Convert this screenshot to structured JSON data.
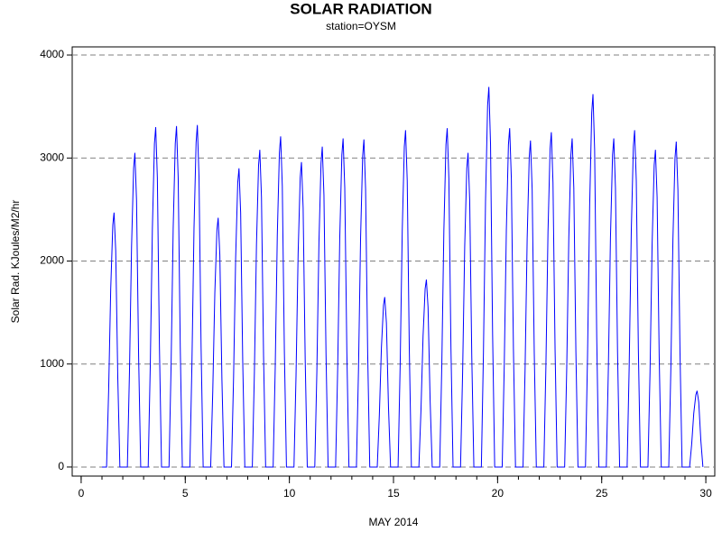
{
  "chart_data": {
    "type": "line",
    "title": "SOLAR RADIATION",
    "subtitle": "station=OYSM",
    "y_label": "Solar Rad. KJoules/M2/hr",
    "x_label": "MAY 2014",
    "color": "#0000ff",
    "xlim": [
      -0.43,
      30.43
    ],
    "ylim": [
      -88,
      4079
    ],
    "xticks": [
      0,
      5,
      10,
      15,
      20,
      25,
      30
    ],
    "xminorticks": [
      0,
      1,
      2,
      3,
      4,
      5,
      6,
      7,
      8,
      9,
      10,
      11,
      12,
      13,
      14,
      15,
      16,
      17,
      18,
      19,
      20,
      21,
      22,
      23,
      24,
      25,
      26,
      27,
      28,
      29,
      30
    ],
    "yticks": [
      0,
      1000,
      2000,
      3000,
      4000
    ],
    "grid": true,
    "x": [
      1.0,
      1.22,
      1.32,
      1.42,
      1.52,
      1.58,
      1.66,
      1.76,
      1.86,
      2.22,
      2.32,
      2.42,
      2.52,
      2.58,
      2.66,
      2.76,
      2.86,
      3.22,
      3.32,
      3.42,
      3.52,
      3.58,
      3.66,
      3.76,
      3.86,
      4.22,
      4.32,
      4.42,
      4.52,
      4.58,
      4.66,
      4.76,
      4.86,
      5.22,
      5.32,
      5.42,
      5.52,
      5.58,
      5.66,
      5.76,
      5.86,
      6.22,
      6.32,
      6.42,
      6.52,
      6.58,
      6.66,
      6.76,
      6.86,
      7.22,
      7.32,
      7.42,
      7.52,
      7.58,
      7.66,
      7.76,
      7.86,
      8.22,
      8.32,
      8.42,
      8.52,
      8.58,
      8.66,
      8.76,
      8.86,
      9.22,
      9.32,
      9.42,
      9.52,
      9.58,
      9.66,
      9.76,
      9.86,
      10.22,
      10.32,
      10.42,
      10.52,
      10.58,
      10.66,
      10.76,
      10.86,
      11.22,
      11.32,
      11.42,
      11.52,
      11.58,
      11.66,
      11.76,
      11.86,
      12.22,
      12.32,
      12.42,
      12.52,
      12.58,
      12.66,
      12.76,
      12.86,
      13.22,
      13.32,
      13.42,
      13.52,
      13.58,
      13.66,
      13.76,
      13.86,
      14.22,
      14.32,
      14.42,
      14.52,
      14.58,
      14.66,
      14.76,
      14.86,
      15.22,
      15.32,
      15.42,
      15.52,
      15.58,
      15.66,
      15.76,
      15.86,
      16.22,
      16.32,
      16.42,
      16.52,
      16.58,
      16.66,
      16.76,
      16.86,
      17.22,
      17.32,
      17.42,
      17.52,
      17.58,
      17.66,
      17.76,
      17.86,
      18.22,
      18.32,
      18.42,
      18.52,
      18.58,
      18.66,
      18.76,
      18.86,
      19.22,
      19.32,
      19.42,
      19.52,
      19.58,
      19.66,
      19.76,
      19.86,
      20.22,
      20.32,
      20.42,
      20.52,
      20.58,
      20.66,
      20.76,
      20.86,
      21.22,
      21.32,
      21.42,
      21.52,
      21.58,
      21.66,
      21.76,
      21.86,
      22.22,
      22.32,
      22.42,
      22.52,
      22.58,
      22.66,
      22.76,
      22.86,
      23.22,
      23.32,
      23.42,
      23.52,
      23.58,
      23.66,
      23.76,
      23.86,
      24.22,
      24.32,
      24.42,
      24.52,
      24.58,
      24.66,
      24.76,
      24.86,
      25.22,
      25.32,
      25.42,
      25.52,
      25.58,
      25.66,
      25.76,
      25.86,
      26.22,
      26.32,
      26.42,
      26.52,
      26.58,
      26.66,
      26.76,
      26.86,
      27.22,
      27.32,
      27.42,
      27.52,
      27.58,
      27.66,
      27.76,
      27.86,
      28.22,
      28.32,
      28.42,
      28.52,
      28.58,
      28.66,
      28.76,
      28.86,
      29.22,
      29.32,
      29.42,
      29.52,
      29.58,
      29.66,
      29.76,
      29.86
    ],
    "values": [
      0,
      0,
      740,
      1730,
      2350,
      2470,
      2100,
      860,
      0,
      0,
      920,
      2140,
      2900,
      3050,
      2590,
      1070,
      0,
      0,
      990,
      2310,
      3140,
      3300,
      2810,
      1160,
      0,
      0,
      990,
      2320,
      3140,
      3310,
      2810,
      1160,
      0,
      0,
      1000,
      2320,
      3150,
      3320,
      2820,
      1160,
      0,
      0,
      730,
      1690,
      2300,
      2420,
      2060,
      850,
      0,
      0,
      870,
      2030,
      2760,
      2900,
      2470,
      1020,
      0,
      0,
      920,
      2160,
      2930,
      3080,
      2620,
      1080,
      0,
      0,
      960,
      2250,
      3050,
      3210,
      2730,
      1120,
      0,
      0,
      890,
      2070,
      2810,
      2960,
      2520,
      1040,
      0,
      0,
      930,
      2180,
      2950,
      3110,
      2640,
      1090,
      0,
      0,
      960,
      2230,
      3030,
      3190,
      2710,
      1120,
      0,
      0,
      950,
      2230,
      3020,
      3180,
      2700,
      1110,
      0,
      0,
      500,
      1160,
      1570,
      1650,
      1400,
      580,
      0,
      0,
      980,
      2290,
      3110,
      3270,
      2780,
      1140,
      0,
      0,
      550,
      1270,
      1730,
      1820,
      1550,
      640,
      0,
      0,
      990,
      2300,
      3130,
      3290,
      2800,
      1150,
      0,
      0,
      920,
      2140,
      2900,
      3050,
      2590,
      1070,
      0,
      0,
      1110,
      2580,
      3510,
      3690,
      3140,
      1290,
      0,
      0,
      990,
      2300,
      3130,
      3290,
      2800,
      1150,
      0,
      0,
      950,
      2220,
      3010,
      3170,
      2690,
      1110,
      0,
      0,
      980,
      2280,
      3090,
      3250,
      2760,
      1140,
      0,
      0,
      960,
      2230,
      3030,
      3190,
      2710,
      1120,
      0,
      0,
      1090,
      2530,
      3440,
      3620,
      3080,
      1270,
      0,
      0,
      960,
      2230,
      3030,
      3190,
      2710,
      1120,
      0,
      0,
      980,
      2290,
      3110,
      3270,
      2780,
      1140,
      0,
      0,
      920,
      2160,
      2930,
      3080,
      2620,
      1080,
      0,
      0,
      950,
      2210,
      3000,
      3160,
      2690,
      1110,
      0,
      0,
      220,
      520,
      700,
      740,
      630,
      260,
      0
    ]
  }
}
